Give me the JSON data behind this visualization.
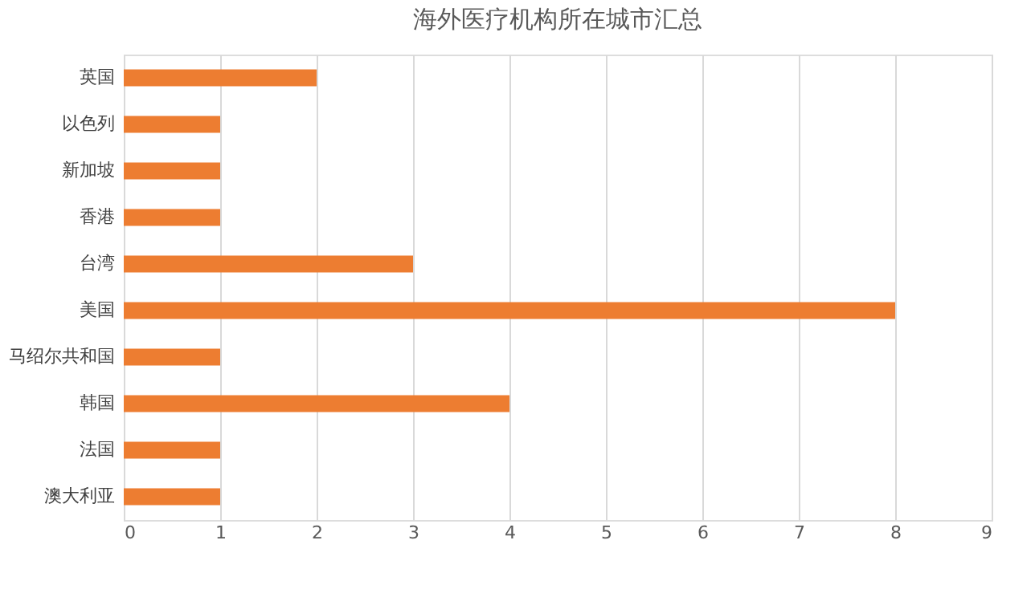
{
  "chart_data": {
    "type": "bar",
    "orientation": "horizontal",
    "title": "海外医疗机构所在城市汇总",
    "categories": [
      "英国",
      "以色列",
      "新加坡",
      "香港",
      "台湾",
      "美国",
      "马绍尔共和国",
      "韩国",
      "法国",
      "澳大利亚"
    ],
    "values": [
      2,
      1,
      1,
      1,
      3,
      8,
      1,
      4,
      1,
      1
    ],
    "color": "#ed7d31",
    "xlim": [
      0,
      9
    ],
    "xticks": [
      0,
      1,
      2,
      3,
      4,
      5,
      6,
      7,
      8,
      9
    ],
    "grid": "x"
  }
}
